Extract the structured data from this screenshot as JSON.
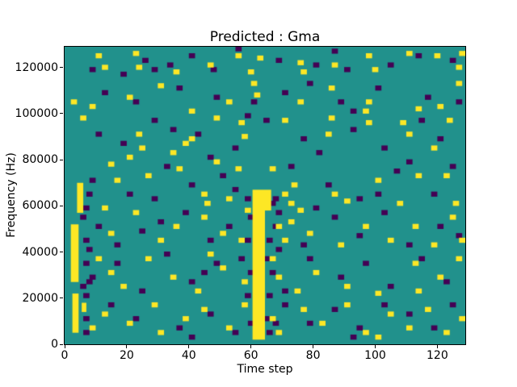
{
  "chart_data": {
    "type": "heatmap",
    "title": "Predicted : Gma",
    "xlabel": "Time step",
    "ylabel": "Frequency (Hz)",
    "x_range": [
      0,
      129
    ],
    "y_range_hz": [
      0,
      129000
    ],
    "y_unit_hz": 1000,
    "x_ticks": [
      0,
      20,
      40,
      60,
      80,
      100,
      120
    ],
    "y_ticks": [
      0,
      20000,
      40000,
      60000,
      80000,
      100000,
      120000
    ],
    "grid": false,
    "legend_position": "none",
    "colors": {
      "mid_background": "#21918c",
      "high": "#fde725",
      "low": "#440154"
    },
    "default_cell": {
      "w": 2,
      "h": 2.2
    },
    "high_rects": [
      [
        60.5,
        2,
        4,
        65
      ],
      [
        64.5,
        58,
        2,
        9
      ],
      [
        2.5,
        5,
        2,
        17
      ],
      [
        2,
        27,
        2.5,
        25
      ],
      [
        4,
        57,
        2,
        13
      ],
      [
        5.5,
        14,
        1.5,
        4
      ]
    ],
    "high_cells": [
      [
        10,
        124
      ],
      [
        12,
        119
      ],
      [
        22,
        125
      ],
      [
        23,
        119
      ],
      [
        35,
        117
      ],
      [
        46,
        120
      ],
      [
        55,
        124
      ],
      [
        59,
        117
      ],
      [
        62,
        123
      ],
      [
        75,
        121
      ],
      [
        76,
        117
      ],
      [
        86,
        120
      ],
      [
        97,
        124
      ],
      [
        99,
        118
      ],
      [
        110,
        125
      ],
      [
        119,
        124
      ],
      [
        126,
        119
      ],
      [
        127,
        125
      ],
      [
        2,
        104
      ],
      [
        8,
        102
      ],
      [
        20,
        106
      ],
      [
        30,
        111
      ],
      [
        40,
        100
      ],
      [
        52,
        104
      ],
      [
        60,
        112
      ],
      [
        61,
        107
      ],
      [
        75,
        104
      ],
      [
        85,
        110
      ],
      [
        96,
        100
      ],
      [
        97,
        104
      ],
      [
        113,
        101
      ],
      [
        120,
        102
      ],
      [
        126,
        112
      ],
      [
        5,
        97
      ],
      [
        20,
        80
      ],
      [
        23,
        90
      ],
      [
        24,
        84
      ],
      [
        34,
        82
      ],
      [
        38,
        86
      ],
      [
        40,
        88
      ],
      [
        48,
        97
      ],
      [
        56,
        95
      ],
      [
        57,
        89
      ],
      [
        70,
        96
      ],
      [
        84,
        90
      ],
      [
        85,
        97
      ],
      [
        97,
        95
      ],
      [
        108,
        95
      ],
      [
        110,
        90
      ],
      [
        118,
        84
      ],
      [
        123,
        96
      ],
      [
        14,
        77
      ],
      [
        16,
        70
      ],
      [
        26,
        72
      ],
      [
        36,
        75
      ],
      [
        44,
        64
      ],
      [
        45,
        60
      ],
      [
        48,
        78
      ],
      [
        52,
        62
      ],
      [
        55,
        75
      ],
      [
        66,
        75
      ],
      [
        70,
        64
      ],
      [
        72,
        60
      ],
      [
        73,
        68
      ],
      [
        86,
        64
      ],
      [
        90,
        61
      ],
      [
        100,
        70
      ],
      [
        107,
        60
      ],
      [
        113,
        72
      ],
      [
        122,
        72
      ],
      [
        125,
        60
      ],
      [
        12,
        58
      ],
      [
        14,
        47
      ],
      [
        22,
        56
      ],
      [
        30,
        44
      ],
      [
        35,
        50
      ],
      [
        44,
        54
      ],
      [
        50,
        47
      ],
      [
        56,
        44
      ],
      [
        58,
        57
      ],
      [
        68,
        50
      ],
      [
        70,
        44
      ],
      [
        72,
        52
      ],
      [
        75,
        57
      ],
      [
        78,
        47
      ],
      [
        88,
        42
      ],
      [
        96,
        50
      ],
      [
        104,
        44
      ],
      [
        112,
        50
      ],
      [
        118,
        42
      ],
      [
        124,
        54
      ],
      [
        127,
        44
      ],
      [
        10,
        36
      ],
      [
        14,
        30
      ],
      [
        18,
        24
      ],
      [
        26,
        36
      ],
      [
        34,
        28
      ],
      [
        42,
        22
      ],
      [
        46,
        38
      ],
      [
        50,
        32
      ],
      [
        57,
        26
      ],
      [
        66,
        36
      ],
      [
        68,
        28
      ],
      [
        74,
        22
      ],
      [
        80,
        30
      ],
      [
        90,
        24
      ],
      [
        100,
        21
      ],
      [
        112,
        34
      ],
      [
        113,
        22
      ],
      [
        120,
        28
      ],
      [
        126,
        36
      ],
      [
        8,
        6
      ],
      [
        12,
        12
      ],
      [
        20,
        8
      ],
      [
        28,
        16
      ],
      [
        30,
        4
      ],
      [
        38,
        10
      ],
      [
        44,
        14
      ],
      [
        52,
        6
      ],
      [
        57,
        16
      ],
      [
        66,
        10
      ],
      [
        68,
        4
      ],
      [
        76,
        14
      ],
      [
        82,
        8
      ],
      [
        90,
        16
      ],
      [
        96,
        4
      ],
      [
        100,
        2
      ],
      [
        104,
        12
      ],
      [
        110,
        6
      ],
      [
        116,
        14
      ],
      [
        122,
        4
      ],
      [
        127,
        10
      ]
    ],
    "low_cells": [
      [
        8,
        118
      ],
      [
        18,
        116
      ],
      [
        25,
        122
      ],
      [
        28,
        118
      ],
      [
        33,
        120
      ],
      [
        40,
        124
      ],
      [
        47,
        118
      ],
      [
        55,
        127
      ],
      [
        68,
        122
      ],
      [
        80,
        120
      ],
      [
        86,
        126
      ],
      [
        90,
        118
      ],
      [
        104,
        120
      ],
      [
        113,
        124
      ],
      [
        124,
        122
      ],
      [
        12,
        108
      ],
      [
        22,
        104
      ],
      [
        36,
        110
      ],
      [
        48,
        106
      ],
      [
        60,
        104
      ],
      [
        70,
        108
      ],
      [
        78,
        112
      ],
      [
        88,
        104
      ],
      [
        92,
        100
      ],
      [
        100,
        110
      ],
      [
        116,
        106
      ],
      [
        126,
        104
      ],
      [
        10,
        90
      ],
      [
        18,
        86
      ],
      [
        28,
        96
      ],
      [
        34,
        92
      ],
      [
        42,
        90
      ],
      [
        46,
        80
      ],
      [
        54,
        84
      ],
      [
        58,
        98
      ],
      [
        64,
        96
      ],
      [
        76,
        88
      ],
      [
        81,
        82
      ],
      [
        92,
        92
      ],
      [
        102,
        84
      ],
      [
        114,
        96
      ],
      [
        120,
        88
      ],
      [
        8,
        70
      ],
      [
        20,
        64
      ],
      [
        28,
        62
      ],
      [
        32,
        76
      ],
      [
        40,
        68
      ],
      [
        50,
        72
      ],
      [
        54,
        66
      ],
      [
        72,
        76
      ],
      [
        84,
        68
      ],
      [
        94,
        62
      ],
      [
        100,
        64
      ],
      [
        106,
        74
      ],
      [
        110,
        78
      ],
      [
        118,
        64
      ],
      [
        124,
        76
      ],
      [
        10,
        50
      ],
      [
        16,
        42
      ],
      [
        24,
        48
      ],
      [
        30,
        52
      ],
      [
        38,
        56
      ],
      [
        46,
        44
      ],
      [
        52,
        50
      ],
      [
        76,
        42
      ],
      [
        80,
        58
      ],
      [
        86,
        54
      ],
      [
        94,
        46
      ],
      [
        102,
        56
      ],
      [
        110,
        42
      ],
      [
        120,
        50
      ],
      [
        126,
        46
      ],
      [
        8,
        28
      ],
      [
        16,
        34
      ],
      [
        24,
        22
      ],
      [
        32,
        38
      ],
      [
        40,
        26
      ],
      [
        44,
        30
      ],
      [
        48,
        34
      ],
      [
        56,
        36
      ],
      [
        70,
        22
      ],
      [
        78,
        36
      ],
      [
        88,
        28
      ],
      [
        96,
        34
      ],
      [
        104,
        24
      ],
      [
        114,
        36
      ],
      [
        122,
        26
      ],
      [
        6,
        4
      ],
      [
        14,
        16
      ],
      [
        22,
        10
      ],
      [
        36,
        6
      ],
      [
        40,
        2
      ],
      [
        46,
        12
      ],
      [
        54,
        4
      ],
      [
        70,
        16
      ],
      [
        78,
        8
      ],
      [
        86,
        14
      ],
      [
        92,
        2
      ],
      [
        94,
        6
      ],
      [
        102,
        16
      ],
      [
        110,
        12
      ],
      [
        118,
        6
      ],
      [
        124,
        16
      ],
      [
        6,
        10
      ],
      [
        6,
        20
      ],
      [
        7,
        26
      ],
      [
        6,
        34
      ],
      [
        7,
        40
      ],
      [
        5,
        54
      ],
      [
        6,
        58
      ],
      [
        7,
        64
      ],
      [
        5,
        24
      ],
      [
        6,
        44
      ],
      [
        58,
        20
      ],
      [
        59,
        30
      ],
      [
        58,
        44
      ],
      [
        59,
        54
      ],
      [
        58,
        62
      ],
      [
        59,
        8
      ],
      [
        64,
        10
      ],
      [
        65,
        20
      ],
      [
        66,
        30
      ],
      [
        65,
        44
      ],
      [
        64,
        36
      ],
      [
        65,
        4
      ],
      [
        66,
        60
      ],
      [
        67,
        50
      ],
      [
        67,
        8
      ],
      [
        67,
        62
      ],
      [
        68,
        40
      ],
      [
        68,
        56
      ]
    ]
  }
}
